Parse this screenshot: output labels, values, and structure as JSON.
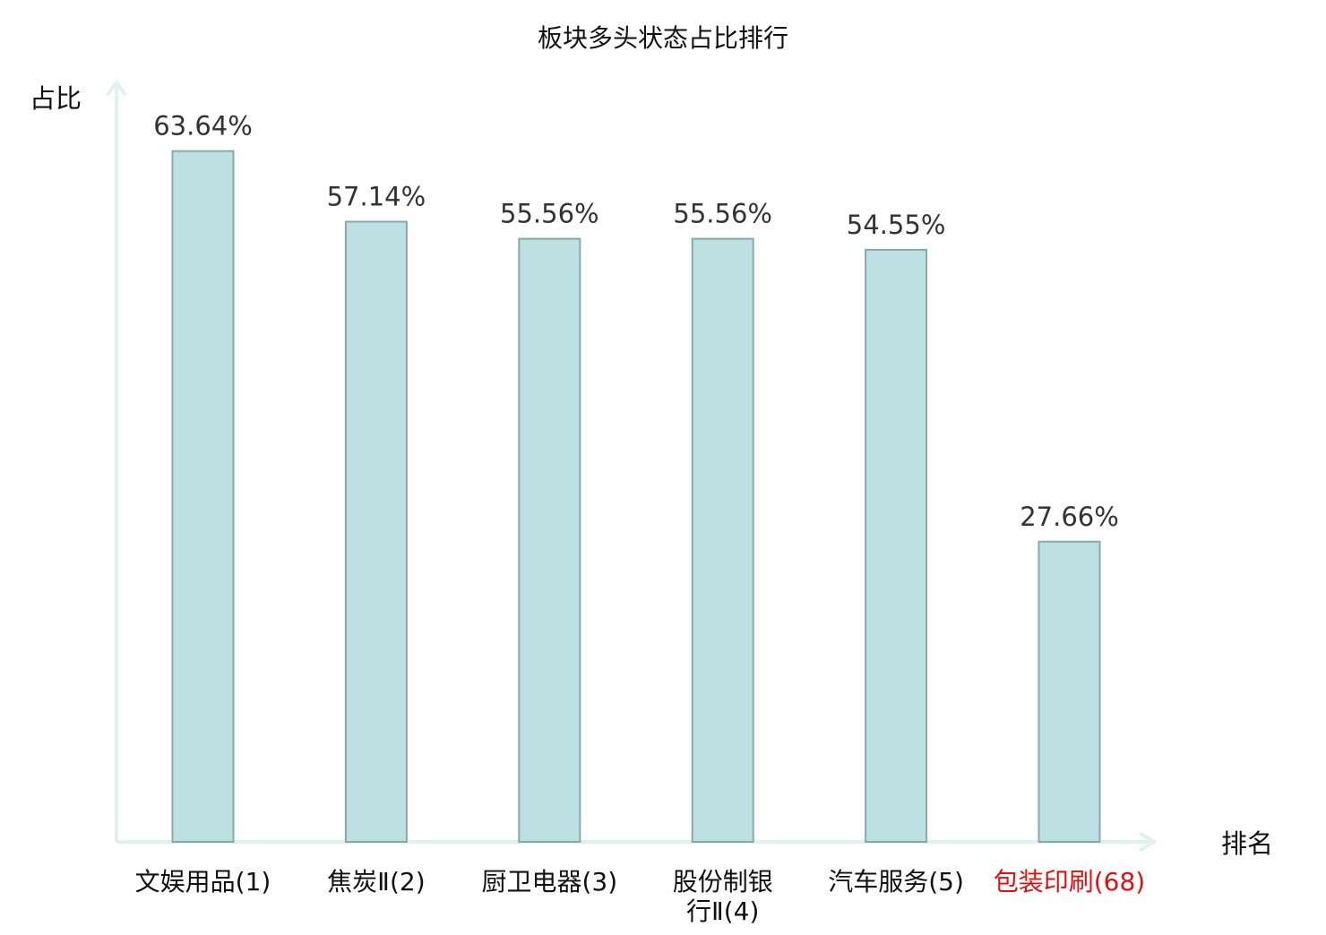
{
  "chart_data": {
    "type": "bar",
    "title": "板块多头状态占比排行",
    "ylabel": "占比",
    "xlabel": "排名",
    "ylim": [
      0,
      70
    ],
    "categories": [
      {
        "lines": [
          "文娱用品(1)"
        ],
        "highlight": false
      },
      {
        "lines": [
          "焦炭Ⅱ(2)"
        ],
        "highlight": false
      },
      {
        "lines": [
          "厨卫电器(3)"
        ],
        "highlight": false
      },
      {
        "lines": [
          "股份制银",
          "行Ⅱ(4)"
        ],
        "highlight": false
      },
      {
        "lines": [
          "汽车服务(5)"
        ],
        "highlight": false
      },
      {
        "lines": [
          "包装印刷(68)"
        ],
        "highlight": true
      }
    ],
    "values": [
      63.64,
      57.14,
      55.56,
      55.56,
      54.55,
      27.66
    ],
    "value_labels": [
      "63.64%",
      "57.14%",
      "55.56%",
      "55.56%",
      "54.55%",
      "27.66%"
    ],
    "grid": false,
    "colors": {
      "bar_fill": "#bde0e2",
      "bar_stroke": "#8aa8aa",
      "axis": "#dff2ee",
      "text": "#111111",
      "value_text": "#333333",
      "highlight_text": "#dd1111"
    }
  }
}
